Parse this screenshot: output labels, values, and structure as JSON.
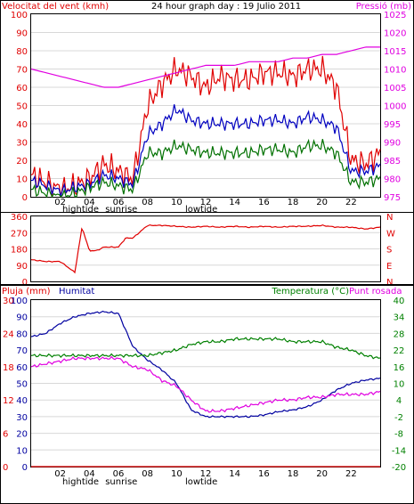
{
  "colors": {
    "wind": "#e00000",
    "gust": "#e00000",
    "wind_avg": "#0000c0",
    "wind_low": "#007000",
    "pressure": "#e000e0",
    "temperature": "#008000",
    "dewpoint": "#e000e0",
    "humidity": "#0000a0",
    "rain": "#e00000",
    "frame": "#000000"
  },
  "chart_data": [
    {
      "id": "wind-pressure",
      "type": "line",
      "title": "24 hour graph day : 19 Julio 2011",
      "left_label": "Velocitat del vent (kmh)",
      "right_label": "Pressió (mb)",
      "left_ticks": [
        "100",
        "90",
        "80",
        "70",
        "60",
        "50",
        "40",
        "30",
        "20",
        "10",
        "0"
      ],
      "right_ticks": [
        "1025",
        "1020",
        "1015",
        "1010",
        "1005",
        "1000",
        "995",
        "990",
        "985",
        "980",
        "975"
      ],
      "x_ticks": [
        "02",
        "04",
        "06",
        "08",
        "10",
        "12",
        "14",
        "16",
        "18",
        "20",
        "22"
      ],
      "events": [
        "hightide",
        "sunrise",
        "lowtide"
      ],
      "ylim_left": [
        0,
        100
      ],
      "ylim_right": [
        975,
        1025
      ],
      "hours": [
        0,
        1,
        2,
        3,
        4,
        5,
        6,
        7,
        8,
        9,
        10,
        11,
        12,
        13,
        14,
        15,
        16,
        17,
        18,
        19,
        20,
        21,
        22,
        23,
        24
      ],
      "series": [
        {
          "color": "wind",
          "values": [
            12,
            8,
            4,
            6,
            10,
            18,
            14,
            10,
            50,
            62,
            70,
            66,
            60,
            66,
            64,
            64,
            68,
            68,
            66,
            70,
            70,
            60,
            20,
            18,
            24
          ]
        },
        {
          "color": "wind_avg",
          "values": [
            9,
            6,
            3,
            5,
            7,
            12,
            10,
            7,
            34,
            40,
            48,
            42,
            40,
            40,
            40,
            40,
            42,
            42,
            40,
            44,
            42,
            38,
            14,
            14,
            17
          ]
        },
        {
          "color": "wind_low",
          "values": [
            4,
            2,
            0,
            2,
            5,
            8,
            6,
            4,
            24,
            24,
            28,
            26,
            24,
            24,
            24,
            24,
            26,
            26,
            24,
            28,
            28,
            24,
            8,
            8,
            10
          ]
        },
        {
          "color": "pressure",
          "axis": "right",
          "values": [
            1010,
            1009,
            1008,
            1007,
            1006,
            1005,
            1005,
            1006,
            1007,
            1008,
            1009,
            1010,
            1011,
            1011,
            1011,
            1012,
            1012,
            1012,
            1013,
            1013,
            1014,
            1014,
            1015,
            1016,
            1016
          ]
        }
      ]
    },
    {
      "id": "wind-direction",
      "type": "line",
      "left_ticks": [
        "360",
        "270",
        "180",
        "90",
        "0"
      ],
      "right_ticks": [
        "N",
        "W",
        "S",
        "E",
        "N"
      ],
      "ylim": [
        0,
        360
      ],
      "hours": [
        0,
        1,
        2,
        3,
        3.5,
        4,
        4.5,
        5,
        6,
        6.5,
        7,
        8,
        9,
        10,
        11,
        12,
        13,
        14,
        15,
        16,
        17,
        18,
        19,
        20,
        21,
        22,
        23,
        24
      ],
      "values": [
        120,
        110,
        110,
        50,
        300,
        170,
        170,
        190,
        190,
        240,
        240,
        310,
        310,
        305,
        300,
        305,
        300,
        305,
        300,
        305,
        300,
        305,
        305,
        310,
        300,
        300,
        290,
        300
      ]
    },
    {
      "id": "temp-hum-rain",
      "type": "line",
      "rain_label": "Pluja (mm)",
      "humidity_label": "Humitat",
      "temp_label": "Temperatura (°C)",
      "dew_label": "Punt rosada",
      "rain_ticks": [
        "30",
        "24",
        "18",
        "12",
        "6",
        "0"
      ],
      "humidity_ticks": [
        "100",
        "90",
        "80",
        "70",
        "60",
        "50",
        "40",
        "30",
        "20",
        "10",
        "0"
      ],
      "temp_ticks": [
        "40",
        "34",
        "28",
        "22",
        "16",
        "10",
        "4",
        "-2",
        "-8",
        "-14",
        "-20"
      ],
      "x_ticks": [
        "02",
        "04",
        "06",
        "08",
        "10",
        "12",
        "14",
        "16",
        "18",
        "20",
        "22"
      ],
      "events": [
        "hightide",
        "sunrise",
        "lowtide"
      ],
      "ylim_rain": [
        0,
        30
      ],
      "ylim_humidity": [
        0,
        100
      ],
      "ylim_temp": [
        -20,
        40
      ],
      "hours": [
        0,
        1,
        2,
        3,
        4,
        5,
        6,
        7,
        8,
        9,
        10,
        11,
        12,
        13,
        14,
        15,
        16,
        17,
        18,
        19,
        20,
        21,
        22,
        23,
        24
      ],
      "series": [
        {
          "color": "humidity",
          "values": [
            78,
            80,
            86,
            90,
            92,
            93,
            92,
            72,
            64,
            58,
            50,
            34,
            30,
            30,
            30,
            30,
            31,
            33,
            34,
            36,
            40,
            46,
            50,
            52,
            53
          ]
        },
        {
          "color": "temperature",
          "values": [
            20,
            20,
            20,
            20,
            20,
            20,
            20,
            20,
            20,
            21,
            22,
            24,
            25,
            25,
            26,
            26,
            26,
            26,
            25,
            25,
            25,
            23,
            22,
            20,
            19
          ]
        },
        {
          "color": "dewpoint",
          "values": [
            16,
            17,
            18,
            19,
            19,
            19,
            19,
            16,
            15,
            11,
            9,
            4,
            0,
            0,
            1,
            2,
            3,
            4,
            4,
            5,
            5,
            6,
            6,
            6,
            7
          ]
        },
        {
          "color": "rain",
          "values": [
            0,
            0,
            0,
            0,
            0,
            0,
            0,
            0,
            0,
            0,
            0,
            0,
            0,
            0,
            0,
            0,
            0,
            0,
            0,
            0,
            0,
            0,
            0,
            0,
            0
          ]
        }
      ]
    }
  ]
}
